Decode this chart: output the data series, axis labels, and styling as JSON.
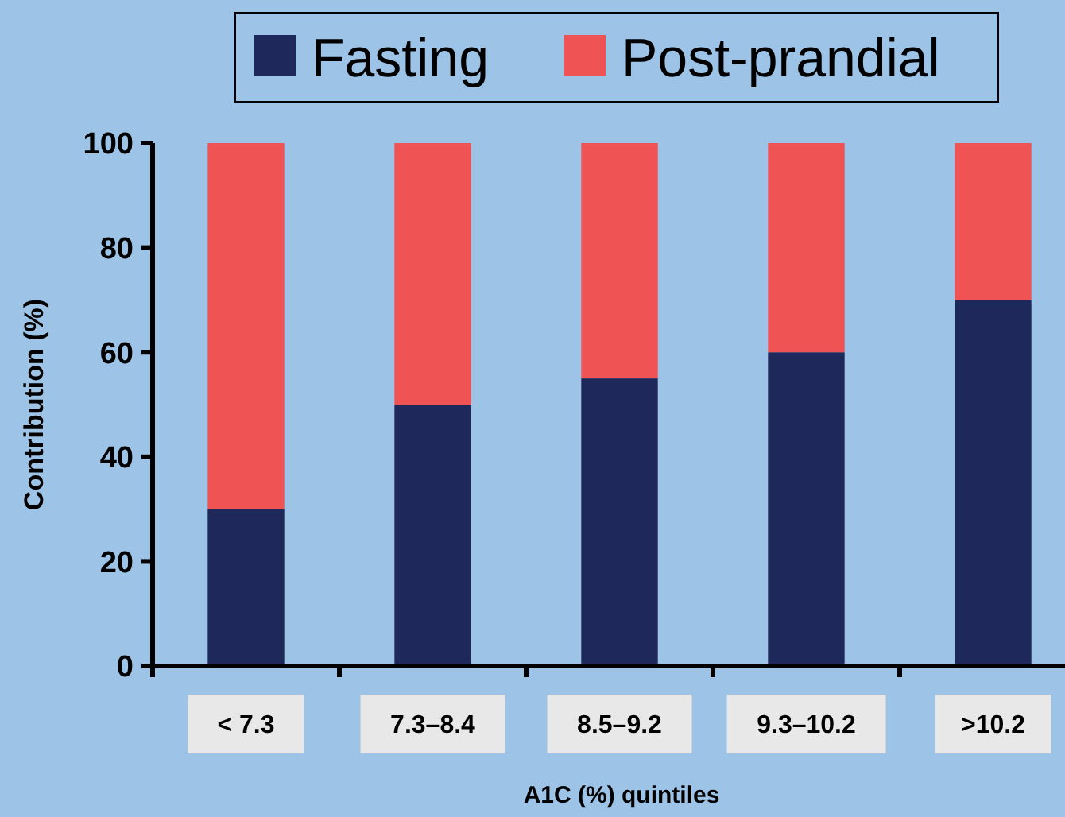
{
  "chart_data": {
    "type": "bar",
    "stacked": true,
    "xlabel": "A1C (%) quintiles",
    "ylabel": "Contribution (%)",
    "categories": [
      "< 7.3",
      "7.3–8.4",
      "8.5–9.2",
      "9.3–10.2",
      ">10.2"
    ],
    "series": [
      {
        "name": "Fasting",
        "color": "#1f285a",
        "values": [
          30,
          50,
          55,
          60,
          70
        ]
      },
      {
        "name": "Post-prandial",
        "color": "#ef5353",
        "values": [
          70,
          50,
          45,
          40,
          30
        ]
      }
    ],
    "ylim": [
      0,
      100
    ],
    "yticks": [
      0,
      20,
      40,
      60,
      80,
      100
    ],
    "grid": false,
    "legend": "top"
  }
}
